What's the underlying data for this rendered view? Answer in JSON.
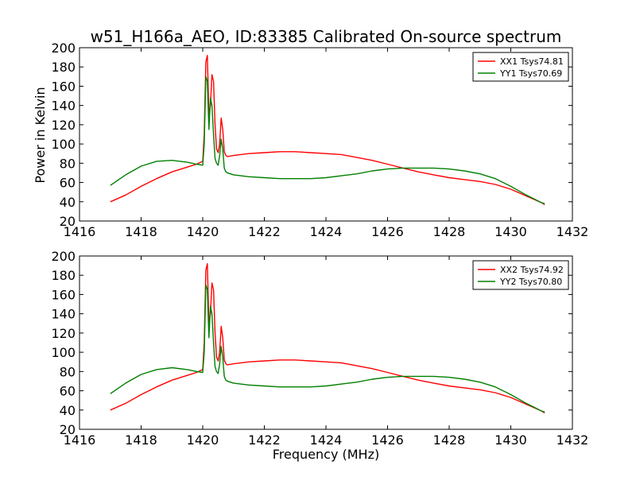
{
  "chart_data": [
    {
      "type": "line",
      "title": "w51_H166a_AEO, ID:83385 Calibrated On-source spectrum",
      "xlabel": "",
      "ylabel": "Power in Kelvin",
      "xlim": [
        1416,
        1432
      ],
      "ylim": [
        20,
        200
      ],
      "xticks": [
        1416,
        1418,
        1420,
        1422,
        1424,
        1426,
        1428,
        1430,
        1432
      ],
      "yticks": [
        20,
        40,
        60,
        80,
        100,
        120,
        140,
        160,
        180,
        200
      ],
      "legend_position": "top-right",
      "series": [
        {
          "name": "XX1 Tsys74.81",
          "color": "#ff0000",
          "x": [
            1417.0,
            1417.5,
            1418.0,
            1418.5,
            1419.0,
            1419.5,
            1419.8,
            1420.0,
            1420.05,
            1420.1,
            1420.15,
            1420.2,
            1420.25,
            1420.3,
            1420.35,
            1420.4,
            1420.45,
            1420.5,
            1420.55,
            1420.6,
            1420.65,
            1420.7,
            1420.75,
            1420.8,
            1421.0,
            1421.5,
            1422.0,
            1422.5,
            1423.0,
            1423.5,
            1424.0,
            1424.5,
            1425.0,
            1425.5,
            1426.0,
            1426.5,
            1427.0,
            1427.5,
            1428.0,
            1428.5,
            1429.0,
            1429.5,
            1430.0,
            1430.5,
            1431.0,
            1431.1
          ],
          "y": [
            40,
            47,
            56,
            64,
            71,
            76,
            79,
            82,
            110,
            185,
            192,
            130,
            140,
            172,
            165,
            120,
            95,
            91,
            100,
            127,
            115,
            92,
            88,
            87,
            88,
            90,
            91,
            92,
            92,
            91,
            90,
            89,
            86,
            83,
            79,
            75,
            71,
            68,
            65,
            63,
            61,
            58,
            53,
            46,
            39,
            37
          ]
        },
        {
          "name": "YY1 Tsys70.69",
          "color": "#008000",
          "x": [
            1417.0,
            1417.5,
            1418.0,
            1418.5,
            1419.0,
            1419.5,
            1419.8,
            1420.0,
            1420.05,
            1420.1,
            1420.15,
            1420.2,
            1420.25,
            1420.3,
            1420.35,
            1420.4,
            1420.45,
            1420.5,
            1420.55,
            1420.6,
            1420.65,
            1420.7,
            1420.75,
            1420.8,
            1421.0,
            1421.5,
            1422.0,
            1422.5,
            1423.0,
            1423.5,
            1424.0,
            1424.5,
            1425.0,
            1425.5,
            1426.0,
            1426.5,
            1427.0,
            1427.5,
            1428.0,
            1428.5,
            1429.0,
            1429.5,
            1430.0,
            1430.5,
            1431.0,
            1431.1
          ],
          "y": [
            57,
            68,
            77,
            82,
            83,
            81,
            79,
            78,
            100,
            170,
            165,
            115,
            148,
            140,
            110,
            85,
            80,
            78,
            88,
            105,
            95,
            75,
            71,
            70,
            68,
            66,
            65,
            64,
            64,
            64,
            65,
            67,
            69,
            72,
            74,
            75,
            75,
            75,
            74,
            72,
            69,
            64,
            56,
            47,
            39,
            38
          ]
        }
      ]
    },
    {
      "type": "line",
      "title": "",
      "xlabel": "Frequency (MHz)",
      "ylabel": "",
      "xlim": [
        1416,
        1432
      ],
      "ylim": [
        20,
        200
      ],
      "xticks": [
        1416,
        1418,
        1420,
        1422,
        1424,
        1426,
        1428,
        1430,
        1432
      ],
      "yticks": [
        20,
        40,
        60,
        80,
        100,
        120,
        140,
        160,
        180,
        200
      ],
      "legend_position": "top-right",
      "series": [
        {
          "name": "XX2 Tsys74.92",
          "color": "#ff0000",
          "x": [
            1417.0,
            1417.5,
            1418.0,
            1418.5,
            1419.0,
            1419.5,
            1419.8,
            1420.0,
            1420.05,
            1420.1,
            1420.15,
            1420.2,
            1420.25,
            1420.3,
            1420.35,
            1420.4,
            1420.45,
            1420.5,
            1420.55,
            1420.6,
            1420.65,
            1420.7,
            1420.75,
            1420.8,
            1421.0,
            1421.5,
            1422.0,
            1422.5,
            1423.0,
            1423.5,
            1424.0,
            1424.5,
            1425.0,
            1425.5,
            1426.0,
            1426.5,
            1427.0,
            1427.5,
            1428.0,
            1428.5,
            1429.0,
            1429.5,
            1430.0,
            1430.5,
            1431.0,
            1431.1
          ],
          "y": [
            40,
            47,
            56,
            64,
            71,
            76,
            79,
            82,
            110,
            185,
            192,
            130,
            140,
            172,
            165,
            120,
            95,
            91,
            100,
            127,
            115,
            92,
            88,
            87,
            88,
            90,
            91,
            92,
            92,
            91,
            90,
            89,
            86,
            83,
            79,
            75,
            71,
            68,
            65,
            63,
            61,
            58,
            53,
            46,
            39,
            37
          ]
        },
        {
          "name": "YY2 Tsys70.80",
          "color": "#008000",
          "x": [
            1417.0,
            1417.5,
            1418.0,
            1418.5,
            1419.0,
            1419.5,
            1419.8,
            1420.0,
            1420.05,
            1420.1,
            1420.15,
            1420.2,
            1420.25,
            1420.3,
            1420.35,
            1420.4,
            1420.45,
            1420.5,
            1420.55,
            1420.6,
            1420.65,
            1420.7,
            1420.75,
            1420.8,
            1421.0,
            1421.5,
            1422.0,
            1422.5,
            1423.0,
            1423.5,
            1424.0,
            1424.5,
            1425.0,
            1425.5,
            1426.0,
            1426.5,
            1427.0,
            1427.5,
            1428.0,
            1428.5,
            1429.0,
            1429.5,
            1430.0,
            1430.5,
            1431.0,
            1431.1
          ],
          "y": [
            57,
            68,
            77,
            82,
            84,
            82,
            80,
            79,
            100,
            170,
            165,
            115,
            148,
            140,
            110,
            85,
            80,
            78,
            88,
            106,
            95,
            75,
            71,
            70,
            68,
            66,
            65,
            64,
            64,
            64,
            65,
            67,
            69,
            72,
            74,
            75,
            75,
            75,
            74,
            72,
            69,
            64,
            56,
            47,
            39,
            38
          ]
        }
      ]
    }
  ]
}
